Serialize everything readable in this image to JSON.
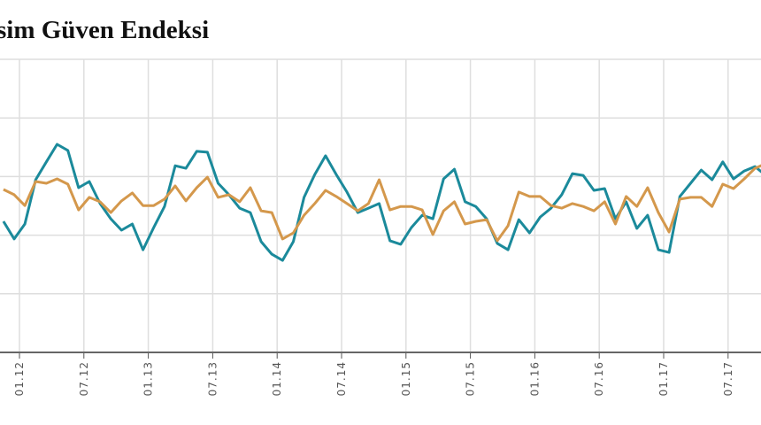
{
  "chart_data": {
    "type": "line",
    "title": "sim Güven Endeksi",
    "xlabel": "",
    "ylabel": "",
    "ylim": [
      0,
      100
    ],
    "grid": true,
    "x_tick_labels": [
      "01.12",
      "07.12",
      "01.13",
      "07.13",
      "01.14",
      "07.14",
      "01.15",
      "07.15",
      "01.16",
      "07.16",
      "01.17",
      "07.17"
    ],
    "x": [
      "2011-12",
      "2012-01",
      "2012-02",
      "2012-03",
      "2012-04",
      "2012-05",
      "2012-06",
      "2012-07",
      "2012-08",
      "2012-09",
      "2012-10",
      "2012-11",
      "2012-12",
      "2013-01",
      "2013-02",
      "2013-03",
      "2013-04",
      "2013-05",
      "2013-06",
      "2013-07",
      "2013-08",
      "2013-09",
      "2013-10",
      "2013-11",
      "2013-12",
      "2014-01",
      "2014-02",
      "2014-03",
      "2014-04",
      "2014-05",
      "2014-06",
      "2014-07",
      "2014-08",
      "2014-09",
      "2014-10",
      "2014-11",
      "2014-12",
      "2015-01",
      "2015-02",
      "2015-03",
      "2015-04",
      "2015-05",
      "2015-06",
      "2015-07",
      "2015-08",
      "2015-09",
      "2015-10",
      "2015-11",
      "2015-12",
      "2016-01",
      "2016-02",
      "2016-03",
      "2016-04",
      "2016-05",
      "2016-06",
      "2016-07",
      "2016-08",
      "2016-09",
      "2016-10",
      "2016-11",
      "2016-12",
      "2017-01",
      "2017-02",
      "2017-03",
      "2017-04",
      "2017-05",
      "2017-06",
      "2017-07",
      "2017-08",
      "2017-09",
      "2017-10",
      "2017-11"
    ],
    "series": [
      {
        "color": "#1b8a9b",
        "values": [
          44.7,
          38.7,
          43.8,
          58.9,
          65.0,
          71.0,
          68.9,
          56.2,
          58.3,
          50.8,
          45.6,
          41.7,
          43.8,
          35.0,
          42.6,
          49.8,
          63.7,
          62.8,
          68.6,
          68.3,
          57.7,
          53.8,
          49.2,
          47.7,
          37.8,
          33.5,
          31.4,
          37.8,
          52.9,
          60.7,
          67.1,
          60.7,
          54.7,
          47.7,
          49.2,
          50.8,
          38.1,
          36.9,
          42.6,
          46.8,
          45.6,
          59.2,
          62.5,
          51.4,
          49.8,
          45.6,
          37.2,
          35.0,
          45.3,
          40.8,
          46.2,
          49.2,
          53.8,
          61.0,
          60.4,
          55.3,
          55.9,
          45.6,
          51.4,
          42.3,
          46.8,
          35.0,
          34.1,
          53.2,
          57.7,
          62.2,
          58.9,
          65.0,
          59.2,
          61.9,
          63.4,
          60.4
        ]
      },
      {
        "color": "#d4984c",
        "values": [
          55.6,
          53.8,
          50.1,
          58.3,
          57.7,
          59.2,
          57.4,
          48.6,
          52.9,
          51.4,
          47.7,
          51.7,
          54.4,
          50.1,
          50.1,
          52.3,
          56.8,
          51.7,
          56.2,
          59.8,
          52.9,
          53.8,
          51.4,
          56.2,
          48.3,
          47.7,
          38.7,
          40.8,
          46.8,
          50.8,
          55.3,
          53.2,
          50.8,
          48.3,
          50.8,
          58.9,
          48.6,
          49.8,
          49.8,
          48.6,
          40.2,
          48.3,
          51.4,
          43.8,
          44.7,
          45.3,
          38.1,
          43.2,
          54.7,
          53.2,
          53.2,
          50.1,
          49.2,
          50.8,
          49.8,
          48.3,
          51.4,
          43.8,
          53.2,
          49.8,
          56.2,
          47.7,
          41.1,
          52.3,
          52.9,
          52.9,
          49.8,
          57.4,
          55.9,
          59.2,
          62.8,
          64.4
        ]
      }
    ]
  }
}
